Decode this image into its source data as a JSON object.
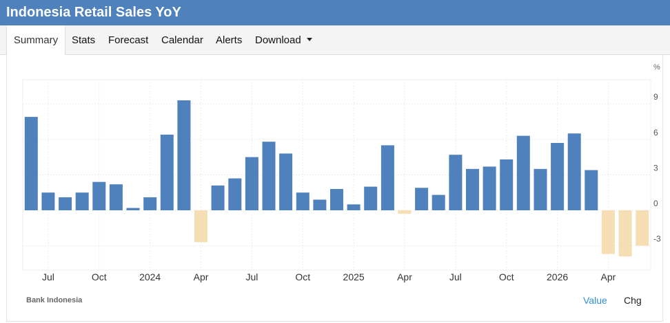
{
  "title": "Indonesia Retail Sales YoY",
  "tabs": [
    {
      "label": "Summary",
      "active": true
    },
    {
      "label": "Stats"
    },
    {
      "label": "Forecast"
    },
    {
      "label": "Calendar"
    },
    {
      "label": "Alerts"
    },
    {
      "label": "Download",
      "dropdown": true
    }
  ],
  "source": "Bank Indonesia",
  "toggles": {
    "value_label": "Value",
    "chg_label": "Chg"
  },
  "colors": {
    "header": "#4f81bd",
    "bar_positive": "#4f81bd",
    "bar_negative": "#f5deb3",
    "value_link": "#2f8fce"
  },
  "chart_data": {
    "type": "bar",
    "unit": "%",
    "ylim": [
      -5,
      11
    ],
    "y_ticks": [
      -3,
      0,
      3,
      6,
      9
    ],
    "y_axis_side": "right",
    "grid": true,
    "x_tick_labels": [
      "Jul",
      "Oct",
      "2024",
      "Apr",
      "Jul",
      "Oct",
      "2025",
      "Apr",
      "Jul",
      "Oct",
      "2026",
      "Apr"
    ],
    "categories": [
      "2023-06",
      "2023-07",
      "2023-08",
      "2023-09",
      "2023-10",
      "2023-11",
      "2023-12",
      "2024-01",
      "2024-02",
      "2024-03",
      "2024-04",
      "2024-05",
      "2024-06",
      "2024-07",
      "2024-08",
      "2024-09",
      "2024-10",
      "2024-11",
      "2024-12",
      "2025-01",
      "2025-02",
      "2025-03",
      "2025-04",
      "2025-05",
      "2025-06",
      "2025-07",
      "2025-08",
      "2025-09",
      "2025-10",
      "2025-11",
      "2025-12",
      "2026-01",
      "2026-02",
      "2026-03",
      "2026-04",
      "2026-05",
      "2026-06"
    ],
    "values": [
      7.9,
      1.5,
      1.1,
      1.5,
      2.4,
      2.2,
      0.2,
      1.1,
      6.4,
      9.3,
      -2.7,
      2.1,
      2.7,
      4.5,
      5.8,
      4.8,
      1.5,
      0.9,
      1.8,
      0.5,
      2.0,
      5.5,
      -0.3,
      1.9,
      1.3,
      4.7,
      3.5,
      3.7,
      4.3,
      6.3,
      3.5,
      5.7,
      6.5,
      3.4,
      -3.7,
      -3.9,
      -3.0
    ]
  }
}
